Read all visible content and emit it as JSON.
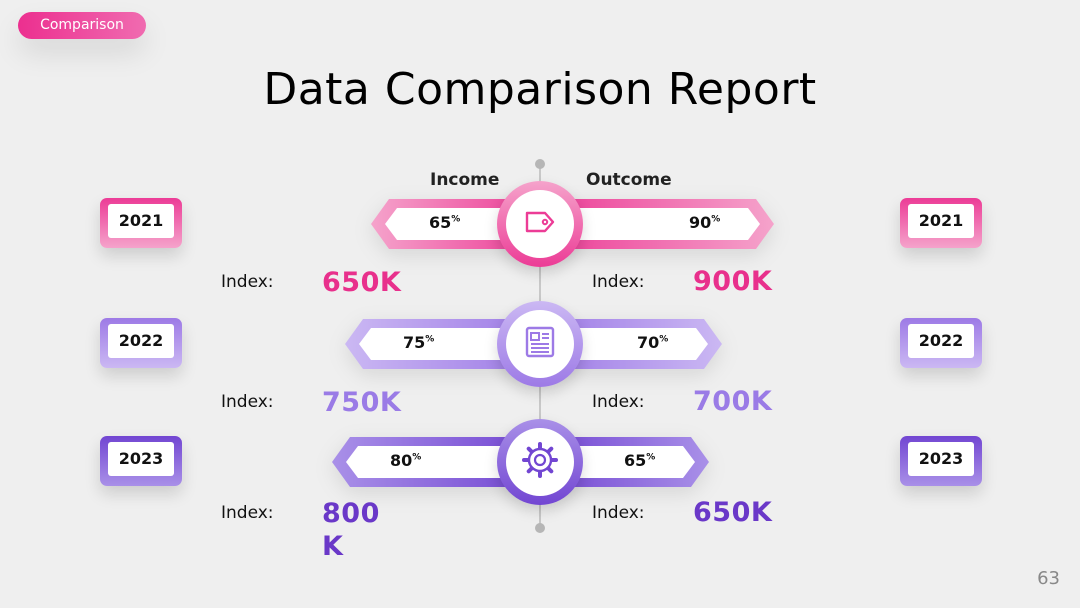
{
  "tag": "Comparison",
  "title": "Data Comparison Report",
  "chart_data": {
    "type": "bar",
    "categories": [
      "2021",
      "2022",
      "2023"
    ],
    "headers": {
      "income": "Income",
      "outcome": "Outcome"
    },
    "series": [
      {
        "name": "Income",
        "values": [
          65,
          75,
          80
        ],
        "unit": "%"
      },
      {
        "name": "Outcome",
        "values": [
          90,
          70,
          65
        ],
        "unit": "%"
      }
    ],
    "index_label": "Index:",
    "income_index": [
      "650K",
      "750K",
      "800\nK"
    ],
    "outcome_index": [
      "900K",
      "700K",
      "650K"
    ],
    "pct_display": {
      "income": [
        "65",
        "75",
        "80"
      ],
      "outcome": [
        "90",
        "70",
        "65"
      ],
      "suffix": "%"
    },
    "row_icons": [
      "price-tag-icon",
      "newspaper-icon",
      "gear-icon"
    ],
    "row_colors": [
      "#ec3c96",
      "#9d7ae6",
      "#7246d2"
    ],
    "value_colors": [
      "#e8308c",
      "#9a7be6",
      "#6a38c8"
    ]
  },
  "page_number": "63"
}
